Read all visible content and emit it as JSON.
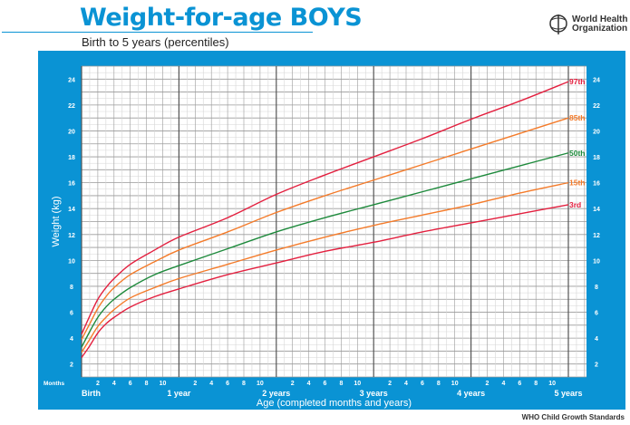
{
  "header": {
    "title": "Weight-for-age BOYS",
    "subtitle": "Birth to 5 years (percentiles)",
    "organization": "World Health Organization",
    "footer": "WHO Child Growth Standards"
  },
  "colors": {
    "panel": "#0a93d4",
    "p3": "#e3203f",
    "p15": "#f47b2a",
    "p50": "#1e8a3c",
    "p85": "#f47b2a",
    "p97": "#e3203f"
  },
  "chart_data": {
    "type": "line",
    "xlabel": "Age (completed months and years)",
    "ylabel": "Weight (kg)",
    "x_unit_label": "Months",
    "xlim": [
      0,
      60
    ],
    "ylim": [
      1,
      25
    ],
    "grid": true,
    "x_month_ticks": [
      "2",
      "4",
      "6",
      "8",
      "10"
    ],
    "x_year_labels": [
      "Birth",
      "1 year",
      "2 years",
      "3 years",
      "4 years",
      "5 years"
    ],
    "y_ticks": [
      2,
      4,
      6,
      8,
      10,
      12,
      14,
      16,
      18,
      20,
      22,
      24
    ],
    "x": [
      0,
      1,
      2,
      3,
      4,
      6,
      9,
      12,
      18,
      24,
      30,
      36,
      42,
      48,
      54,
      60
    ],
    "series": [
      {
        "name": "97th",
        "color_key": "p97",
        "values": [
          4.3,
          5.7,
          7.0,
          7.9,
          8.6,
          9.7,
          10.8,
          11.8,
          13.3,
          15.1,
          16.6,
          18.0,
          19.4,
          20.9,
          22.3,
          23.8
        ]
      },
      {
        "name": "85th",
        "color_key": "p85",
        "values": [
          3.9,
          5.1,
          6.3,
          7.2,
          7.9,
          8.9,
          9.9,
          10.8,
          12.2,
          13.7,
          15.0,
          16.2,
          17.4,
          18.6,
          19.8,
          21.0
        ]
      },
      {
        "name": "50th",
        "color_key": "p50",
        "values": [
          3.3,
          4.5,
          5.6,
          6.4,
          7.0,
          7.9,
          8.9,
          9.6,
          10.9,
          12.2,
          13.3,
          14.3,
          15.3,
          16.3,
          17.3,
          18.3
        ]
      },
      {
        "name": "15th",
        "color_key": "p15",
        "values": [
          2.9,
          3.9,
          4.9,
          5.6,
          6.2,
          7.1,
          7.9,
          8.6,
          9.7,
          10.8,
          11.8,
          12.7,
          13.5,
          14.3,
          15.2,
          16.0
        ]
      },
      {
        "name": "3rd",
        "color_key": "p3",
        "values": [
          2.5,
          3.4,
          4.4,
          5.1,
          5.6,
          6.4,
          7.2,
          7.8,
          8.9,
          9.8,
          10.7,
          11.4,
          12.2,
          12.9,
          13.6,
          14.3
        ]
      }
    ]
  }
}
